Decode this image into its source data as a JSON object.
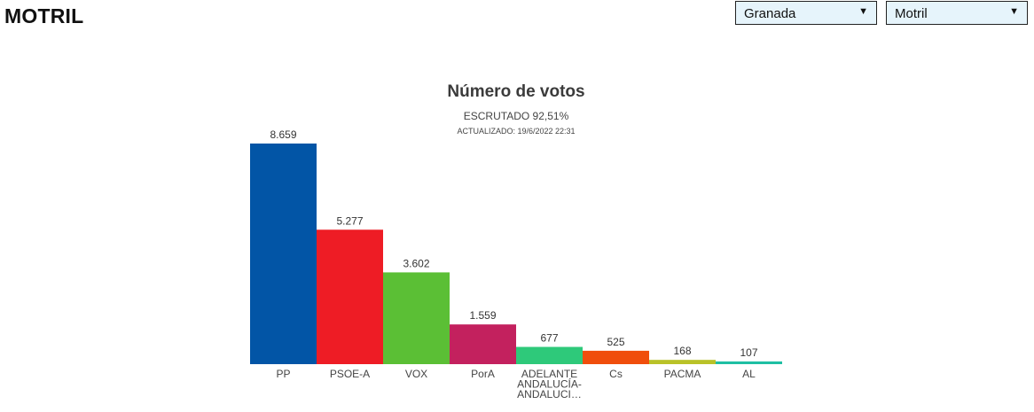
{
  "header": {
    "title": "MOTRIL"
  },
  "filters": {
    "province": {
      "selected": "Granada"
    },
    "municipality": {
      "selected": "Motril"
    },
    "caret_icon": "caret-down-icon"
  },
  "chart_data": {
    "type": "bar",
    "title": "Número de votos",
    "subtitle": "ESCRUTADO 92,51%",
    "updated": "ACTUALIZADO: 19/6/2022 22:31",
    "xlabel": "",
    "ylabel": "",
    "categories": [
      "PP",
      "PSOE-A",
      "VOX",
      "PorA",
      "ADELANTE ANDALUCÍA-ANDALUCI…",
      "Cs",
      "PACMA",
      "AL"
    ],
    "category_lines": [
      [
        "PP"
      ],
      [
        "PSOE-A"
      ],
      [
        "VOX"
      ],
      [
        "PorA"
      ],
      [
        "ADELANTE",
        "ANDALUCÍA-",
        "ANDALUCI…"
      ],
      [
        "Cs"
      ],
      [
        "PACMA"
      ],
      [
        "AL"
      ]
    ],
    "values": [
      8659,
      5277,
      3602,
      1559,
      677,
      525,
      168,
      107
    ],
    "value_labels": [
      "8.659",
      "5.277",
      "3.602",
      "1.559",
      "677",
      "525",
      "168",
      "107"
    ],
    "colors": [
      "#0255a6",
      "#ee1c25",
      "#5bbf35",
      "#c3215e",
      "#2ec97a",
      "#f04e0c",
      "#b9c228",
      "#1fbfa3"
    ],
    "ylim": [
      0,
      8659
    ],
    "grid": false,
    "legend": "none"
  }
}
